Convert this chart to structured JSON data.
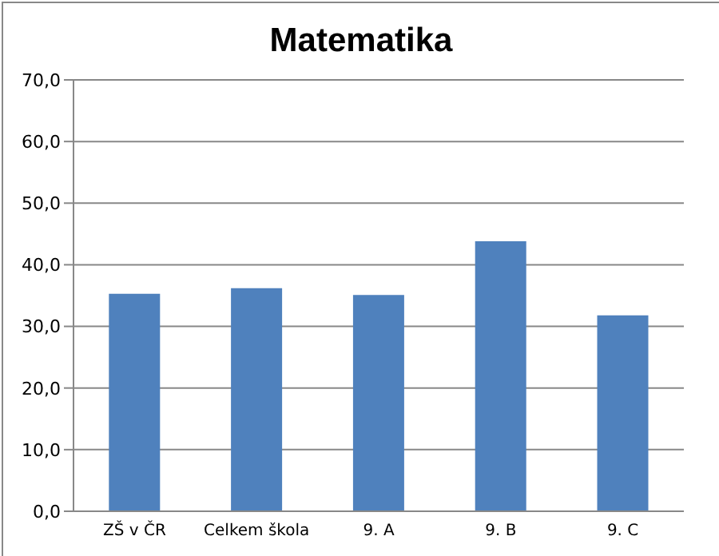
{
  "chart_data": {
    "type": "bar",
    "title": "Matematika",
    "categories": [
      "ZŠ v ČR",
      "Celkem škola",
      "9. A",
      "9. B",
      "9. C"
    ],
    "values": [
      35.3,
      36.2,
      35.1,
      43.8,
      31.8
    ],
    "color": "#4f81bd",
    "ylim": [
      0,
      70
    ],
    "yticks": [
      {
        "value": 0,
        "label": "0,0"
      },
      {
        "value": 10,
        "label": "10,0"
      },
      {
        "value": 20,
        "label": "20,0"
      },
      {
        "value": 30,
        "label": "30,0"
      },
      {
        "value": 40,
        "label": "40,0"
      },
      {
        "value": 50,
        "label": "50,0"
      },
      {
        "value": 60,
        "label": "60,0"
      },
      {
        "value": 70,
        "label": "70,0"
      }
    ],
    "grid": "y"
  }
}
